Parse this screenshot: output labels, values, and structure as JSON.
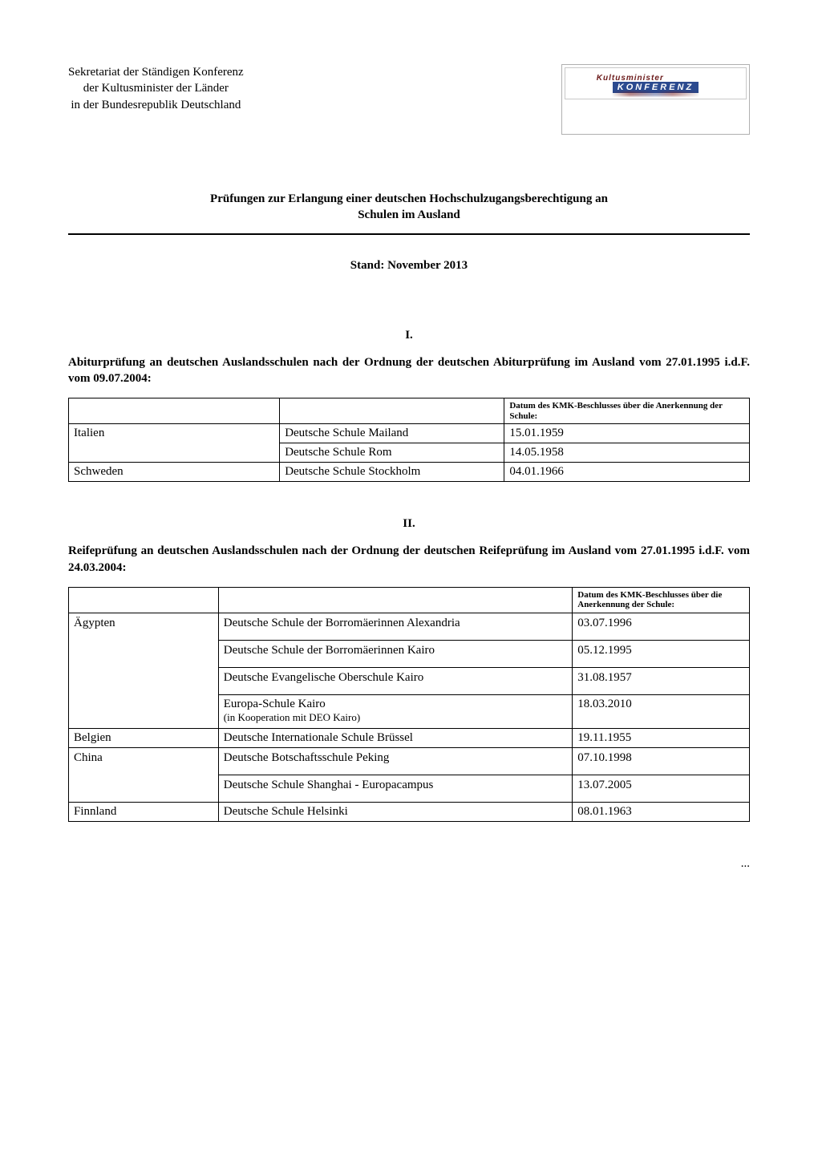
{
  "org": {
    "line1": "Sekretariat der Ständigen Konferenz",
    "line2": "der Kultusminister der Länder",
    "line3": "in der Bundesrepublik Deutschland"
  },
  "logo": {
    "word_top": "Kultusminister",
    "word_bottom": "KONFERENZ",
    "border_color": "#b0b0b0",
    "bar_color": "#2b4a8f",
    "text_color": "#6b1a1a"
  },
  "title": {
    "line1": "Prüfungen zur Erlangung einer deutschen Hochschulzugangsberechtigung an",
    "line2": "Schulen im Ausland"
  },
  "stand": "Stand: November 2013",
  "section1": {
    "number": "I.",
    "heading": "Abiturprüfung an deutschen Auslandsschulen nach der Ordnung der deutschen Abiturprüfung im Ausland vom 27.01.1995 i.d.F. vom 09.07.2004:",
    "columns": [
      "",
      "",
      "Datum des KMK-Beschlusses über die Anerkennung der Schule:"
    ],
    "col_widths_pct": [
      31,
      33,
      36
    ],
    "rows": [
      {
        "country": "Italien",
        "schools": [
          {
            "name": "Deutsche Schule Mailand",
            "date": "15.01.1959"
          },
          {
            "name": "Deutsche Schule Rom",
            "date": "14.05.1958"
          }
        ]
      },
      {
        "country": "Schweden",
        "schools": [
          {
            "name": "Deutsche Schule Stockholm",
            "date": "04.01.1966"
          }
        ]
      }
    ]
  },
  "section2": {
    "number": "II.",
    "heading": "Reifeprüfung an deutschen Auslandsschulen nach der Ordnung der deutschen Reifeprüfung im Ausland vom 27.01.1995 i.d.F. vom 24.03.2004:",
    "columns": [
      "",
      "",
      "Datum des KMK-Beschlusses über die Anerkennung der Schule:"
    ],
    "col_widths_pct": [
      22,
      52,
      26
    ],
    "rows": [
      {
        "country": "Ägypten",
        "schools": [
          {
            "name": "Deutsche Schule der Borromäerinnen Alexandria",
            "date": "03.07.1996"
          },
          {
            "name": "Deutsche Schule der Borromäerinnen Kairo",
            "date": "05.12.1995"
          },
          {
            "name": "Deutsche Evangelische Oberschule Kairo",
            "date": "31.08.1957"
          },
          {
            "name": "Europa-Schule Kairo",
            "date": "18.03.2010",
            "note": "(in Kooperation mit DEO Kairo)"
          }
        ]
      },
      {
        "country": "Belgien",
        "schools": [
          {
            "name": "Deutsche Internationale Schule Brüssel",
            "date": "19.11.1955"
          }
        ]
      },
      {
        "country": "China",
        "schools": [
          {
            "name": "Deutsche Botschaftsschule Peking",
            "date": "07.10.1998"
          },
          {
            "name": "Deutsche Schule Shanghai - Europacampus",
            "date": "13.07.2005"
          }
        ]
      },
      {
        "country": "Finnland",
        "schools": [
          {
            "name": "Deutsche Schule Helsinki",
            "date": "08.01.1963"
          }
        ]
      }
    ]
  },
  "continuation_marker": "...",
  "style": {
    "font_family": "Times New Roman",
    "body_font_size_pt": 12,
    "th_font_size_pt": 8.5,
    "text_color": "#000000",
    "background_color": "#ffffff",
    "rule_color": "#000000",
    "table_border_color": "#000000"
  }
}
